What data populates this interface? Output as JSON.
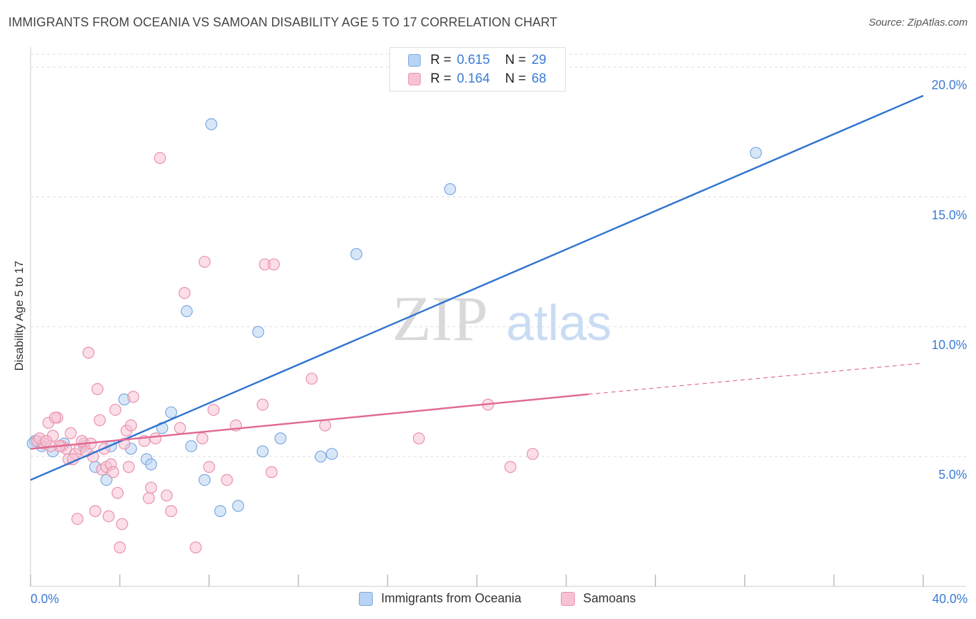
{
  "title": "IMMIGRANTS FROM OCEANIA VS SAMOAN DISABILITY AGE 5 TO 17 CORRELATION CHART",
  "source": "Source: ZipAtlas.com",
  "watermark": {
    "zip": "ZIP",
    "atlas": "atlas"
  },
  "legend": {
    "rows": [
      {
        "r_label": "R =",
        "r_value": "0.615",
        "n_label": "N =",
        "n_value": "29"
      },
      {
        "r_label": "R =",
        "r_value": "0.164",
        "n_label": "N =",
        "n_value": "68"
      }
    ]
  },
  "bottom_legend": [
    "Immigrants from Oceania",
    "Samoans"
  ],
  "x_axis": {
    "min_label": "0.0%",
    "max_label": "40.0%"
  },
  "y_axis": {
    "label": "Disability Age 5 to 17"
  },
  "colors": {
    "blue_fill": "#b8d3f3",
    "blue_stroke": "#7aa7e0",
    "blue_line": "#2f74d0",
    "pink_fill": "#f7c3d4",
    "pink_stroke": "#e891ad",
    "pink_line": "#e06a93",
    "accent_text": "#3a7bd5",
    "grid": "#dddddd"
  },
  "chart_data": {
    "type": "scatter",
    "xlim": [
      0,
      40
    ],
    "ylim": [
      0,
      20.5
    ],
    "y_ticks": [
      {
        "value": 5,
        "label": "5.0%"
      },
      {
        "value": 10,
        "label": "10.0%"
      },
      {
        "value": 15,
        "label": "15.0%"
      },
      {
        "value": 20,
        "label": "20.0%"
      }
    ],
    "x_ticks": [
      0,
      4,
      8,
      12,
      16,
      20,
      24,
      28,
      32,
      36,
      40
    ],
    "grid": true,
    "legend_position": "top-center",
    "series": [
      {
        "name": "Immigrants from Oceania",
        "color_key": "blue",
        "points": [
          [
            0.2,
            5.6
          ],
          [
            0.5,
            5.4
          ],
          [
            1.0,
            5.2
          ],
          [
            1.5,
            5.5
          ],
          [
            2.4,
            5.4
          ],
          [
            2.9,
            4.6
          ],
          [
            3.4,
            4.1
          ],
          [
            3.6,
            5.4
          ],
          [
            4.2,
            7.2
          ],
          [
            4.5,
            5.3
          ],
          [
            5.2,
            4.9
          ],
          [
            5.4,
            4.7
          ],
          [
            5.9,
            6.1
          ],
          [
            6.3,
            6.7
          ],
          [
            7.0,
            10.6
          ],
          [
            7.2,
            5.4
          ],
          [
            7.8,
            4.1
          ],
          [
            8.1,
            17.8
          ],
          [
            8.5,
            2.9
          ],
          [
            9.3,
            3.1
          ],
          [
            10.2,
            9.8
          ],
          [
            10.4,
            5.2
          ],
          [
            11.2,
            5.7
          ],
          [
            13.0,
            5.0
          ],
          [
            13.5,
            5.1
          ],
          [
            14.6,
            12.8
          ],
          [
            18.8,
            15.3
          ],
          [
            32.5,
            16.7
          ],
          [
            0.1,
            5.5
          ]
        ],
        "trend": {
          "x": [
            0,
            40
          ],
          "y": [
            4.1,
            18.9
          ]
        }
      },
      {
        "name": "Samoans",
        "color_key": "pink",
        "points": [
          [
            0.3,
            5.6
          ],
          [
            0.6,
            5.5
          ],
          [
            0.8,
            6.3
          ],
          [
            1.0,
            5.8
          ],
          [
            1.2,
            6.5
          ],
          [
            1.4,
            5.4
          ],
          [
            1.6,
            5.3
          ],
          [
            1.7,
            4.9
          ],
          [
            1.8,
            5.9
          ],
          [
            2.0,
            5.1
          ],
          [
            2.2,
            5.3
          ],
          [
            2.4,
            5.5
          ],
          [
            2.5,
            5.2
          ],
          [
            2.6,
            9.0
          ],
          [
            2.8,
            5.0
          ],
          [
            2.9,
            2.9
          ],
          [
            3.0,
            7.6
          ],
          [
            3.1,
            6.4
          ],
          [
            3.2,
            4.5
          ],
          [
            3.4,
            4.6
          ],
          [
            3.5,
            2.7
          ],
          [
            3.6,
            4.7
          ],
          [
            3.7,
            4.4
          ],
          [
            3.8,
            6.8
          ],
          [
            3.9,
            3.6
          ],
          [
            4.0,
            1.5
          ],
          [
            4.1,
            2.4
          ],
          [
            4.2,
            5.5
          ],
          [
            4.3,
            6.0
          ],
          [
            4.4,
            4.6
          ],
          [
            4.5,
            6.2
          ],
          [
            4.6,
            7.3
          ],
          [
            5.1,
            5.6
          ],
          [
            5.3,
            3.4
          ],
          [
            5.4,
            3.8
          ],
          [
            5.6,
            5.7
          ],
          [
            5.8,
            16.5
          ],
          [
            6.1,
            3.5
          ],
          [
            6.3,
            2.9
          ],
          [
            6.7,
            6.1
          ],
          [
            6.9,
            11.3
          ],
          [
            7.4,
            1.5
          ],
          [
            7.7,
            5.7
          ],
          [
            7.8,
            12.5
          ],
          [
            8.0,
            4.6
          ],
          [
            8.2,
            6.8
          ],
          [
            8.8,
            4.1
          ],
          [
            9.2,
            6.2
          ],
          [
            10.4,
            7.0
          ],
          [
            10.5,
            12.4
          ],
          [
            10.8,
            4.4
          ],
          [
            10.9,
            12.4
          ],
          [
            12.6,
            8.0
          ],
          [
            13.2,
            6.2
          ],
          [
            17.4,
            5.7
          ],
          [
            20.5,
            7.0
          ],
          [
            21.5,
            4.6
          ],
          [
            22.5,
            5.1
          ],
          [
            1.1,
            6.5
          ],
          [
            1.3,
            5.4
          ],
          [
            0.4,
            5.7
          ],
          [
            0.9,
            5.4
          ],
          [
            2.3,
            5.6
          ],
          [
            2.1,
            2.6
          ],
          [
            3.3,
            5.3
          ],
          [
            0.7,
            5.6
          ],
          [
            1.9,
            4.9
          ],
          [
            2.7,
            5.5
          ]
        ],
        "trend": {
          "x": [
            0,
            25
          ],
          "y": [
            5.3,
            7.4
          ]
        },
        "trend_dashed": {
          "x": [
            25,
            40
          ],
          "y": [
            7.4,
            8.6
          ]
        }
      }
    ]
  }
}
